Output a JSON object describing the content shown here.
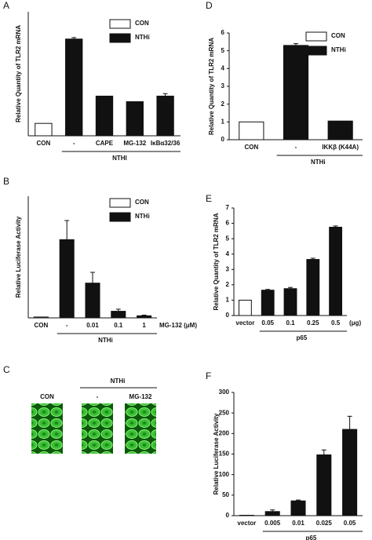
{
  "chart_data": [
    {
      "type": "bar",
      "panel": "A",
      "ylabel": "Relative Quantity of TLR2 mRNA",
      "categories": [
        "CON",
        "-",
        "CAPE",
        "MG-132",
        "IκBα32/36"
      ],
      "values": [
        1,
        7.8,
        3.2,
        2.75,
        3.2
      ],
      "errors": [
        null,
        0.12,
        null,
        null,
        0.2
      ],
      "bar_colors": [
        "#ffffff",
        "#111111",
        "#111111",
        "#111111",
        "#111111"
      ],
      "legend": [
        {
          "name": "CON",
          "color": "#ffffff"
        },
        {
          "name": "NTHi",
          "color": "#111111"
        }
      ],
      "group_label": "NTHI",
      "ylim": [
        0,
        10
      ]
    },
    {
      "type": "bar",
      "panel": "B",
      "ylabel": "Relative Luciferase Activity",
      "categories": [
        "CON",
        "-",
        "0.01",
        "0.1",
        "1"
      ],
      "values": [
        5,
        450,
        200,
        38,
        12
      ],
      "errors": [
        null,
        110,
        62,
        12,
        4
      ],
      "bar_colors": [
        "#ffffff",
        "#111111",
        "#111111",
        "#111111",
        "#111111"
      ],
      "legend": [
        {
          "name": "CON",
          "color": "#ffffff"
        },
        {
          "name": "NTHi",
          "color": "#111111"
        }
      ],
      "x_unit": "MG-132 (μM)",
      "group_label": "NTHi",
      "ylim": [
        0,
        700
      ]
    },
    {
      "type": "bar",
      "panel": "D",
      "ylabel": "Relative Quantity of TLR2 mRNA",
      "categories": [
        "CON",
        "-",
        "IKKβ (K44A)"
      ],
      "values": [
        1,
        5.3,
        1.05
      ],
      "errors": [
        null,
        0.1,
        null
      ],
      "bar_colors": [
        "#ffffff",
        "#111111",
        "#111111"
      ],
      "legend": [
        {
          "name": "CON",
          "color": "#ffffff"
        },
        {
          "name": "NTHi",
          "color": "#111111"
        }
      ],
      "group_label": "NTHi",
      "ylim": [
        0,
        6
      ],
      "yticks": [
        0,
        1,
        2,
        3,
        4,
        5,
        6
      ]
    },
    {
      "type": "bar",
      "panel": "E",
      "ylabel": "Relative Quantity of TLR2 mRNA",
      "categories": [
        "vector",
        "0.05",
        "0.1",
        "0.25",
        "0.5"
      ],
      "values": [
        1,
        1.65,
        1.75,
        3.65,
        5.75
      ],
      "errors": [
        null,
        0.05,
        0.08,
        0.08,
        0.08
      ],
      "bar_colors": [
        "#ffffff",
        "#111111",
        "#111111",
        "#111111",
        "#111111"
      ],
      "x_unit": "(μg)",
      "group_label": "p65",
      "ylim": [
        0,
        7
      ],
      "yticks": [
        0,
        1,
        2,
        3,
        4,
        5,
        6,
        7
      ]
    },
    {
      "type": "bar",
      "panel": "F",
      "ylabel": "Relative Luciferase Activity",
      "categories": [
        "vector",
        "0.005",
        "0.01",
        "0.025",
        "0.05"
      ],
      "values": [
        1,
        10,
        36,
        148,
        210
      ],
      "errors": [
        null,
        4,
        2,
        12,
        32
      ],
      "bar_colors": [
        "#ffffff",
        "#111111",
        "#111111",
        "#111111",
        "#111111"
      ],
      "group_label": "p65",
      "ylim": [
        0,
        300
      ],
      "yticks": [
        0,
        50,
        100,
        150,
        200,
        250,
        300
      ]
    }
  ],
  "panel_c": {
    "panel": "C",
    "group": "NTHi",
    "labels": [
      "CON",
      "-",
      "MG-132"
    ]
  }
}
